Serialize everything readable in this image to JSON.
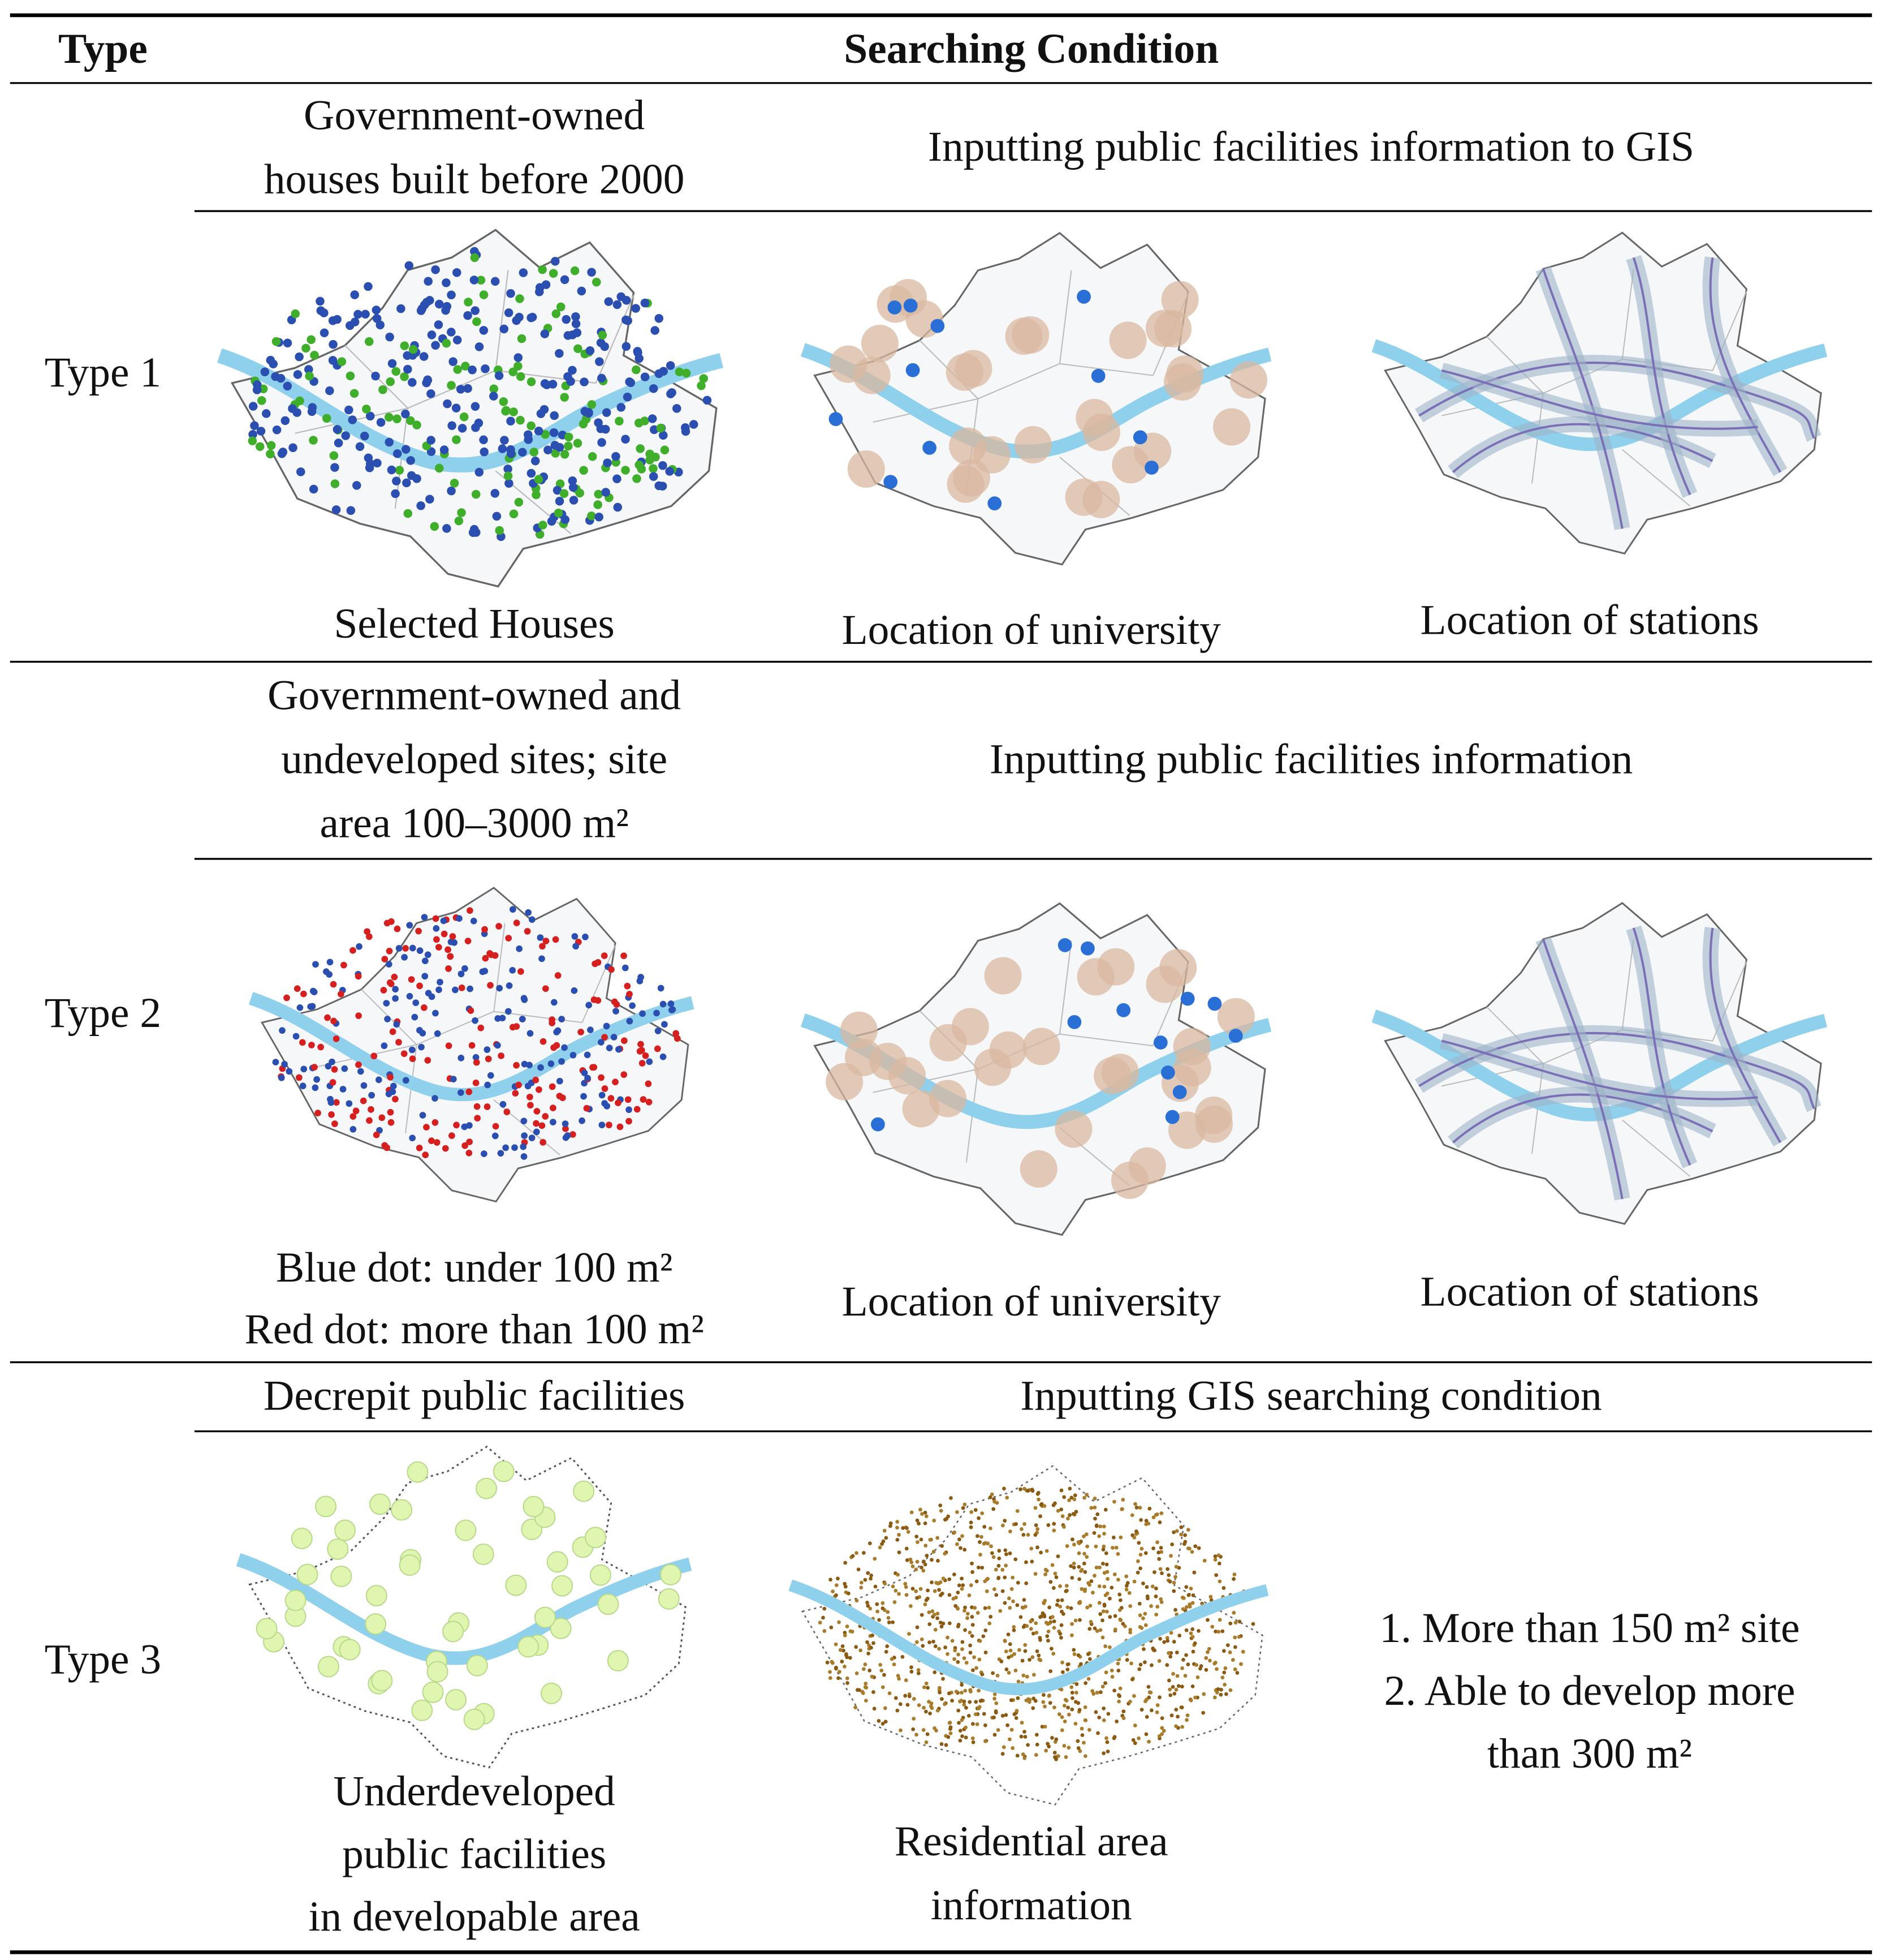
{
  "header": {
    "type": "Type",
    "condition": "Searching Condition"
  },
  "rows": [
    {
      "type": "Type 1",
      "criteria": [
        "Government-owned",
        "houses built before 2000"
      ],
      "condition": "Inputting public facilities information to GIS",
      "captions": [
        [
          "Selected Houses"
        ],
        [
          "Location of university"
        ],
        [
          "Location of stations"
        ]
      ]
    },
    {
      "type": "Type 2",
      "criteria": [
        "Government-owned and",
        "undeveloped sites; site",
        "area 100–3000 m²"
      ],
      "condition": "Inputting public facilities information",
      "captions": [
        [
          "Blue dot: under 100 m²",
          "Red dot: more than 100 m²"
        ],
        [
          "Location of university"
        ],
        [
          "Location of stations"
        ]
      ]
    },
    {
      "type": "Type 3",
      "criteria": [
        "Decrepit public facilities"
      ],
      "condition": "Inputting GIS searching condition",
      "captions": [
        [
          "Underdeveloped",
          "public facilities",
          "in developable area"
        ],
        [
          "Residential area",
          "information"
        ],
        [
          "1. More than 150 m² site",
          "2. Able to develop more",
          "than 300 m²"
        ]
      ]
    }
  ]
}
